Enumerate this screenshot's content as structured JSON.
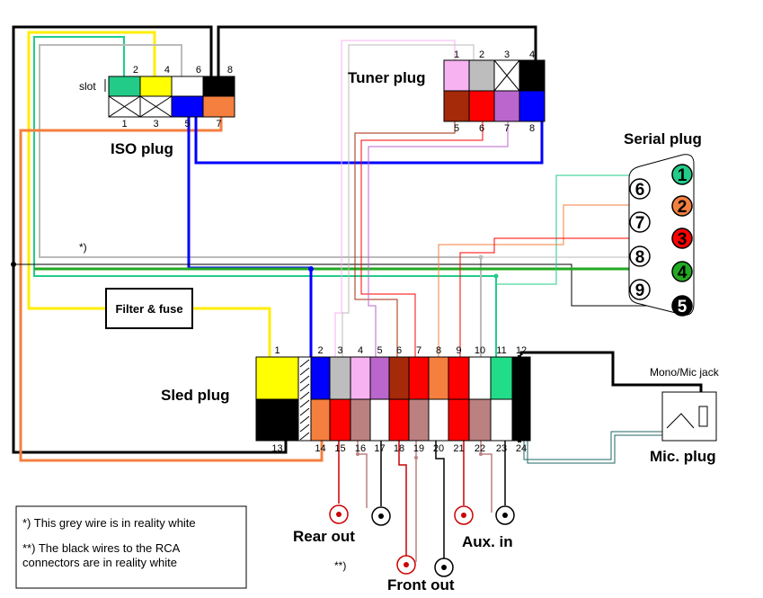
{
  "diagram": {
    "iso_plug": {
      "label": "ISO plug",
      "slot_label": "slot",
      "top_pins": [
        {
          "num": "2",
          "color": "#22cc88"
        },
        {
          "num": "4",
          "color": "#ffff00"
        },
        {
          "num": "6",
          "color": "#ffffff"
        },
        {
          "num": "8",
          "color": "#000000"
        }
      ],
      "bottom_pins": [
        {
          "num": "1",
          "color": "none"
        },
        {
          "num": "3",
          "color": "none"
        },
        {
          "num": "5",
          "color": "#0000ff"
        },
        {
          "num": "7",
          "color": "#f47f3f"
        }
      ]
    },
    "tuner_plug": {
      "label": "Tuner plug",
      "top_pins": [
        {
          "num": "1",
          "color": "#f7b2f2"
        },
        {
          "num": "2",
          "color": "#bdbdbd"
        },
        {
          "num": "3",
          "color": "none"
        },
        {
          "num": "4",
          "color": "#000000"
        }
      ],
      "bottom_pins": [
        {
          "num": "5",
          "color": "#a52a0a"
        },
        {
          "num": "6",
          "color": "#ff0000"
        },
        {
          "num": "7",
          "color": "#bb66cc"
        },
        {
          "num": "8",
          "color": "#0000ff"
        }
      ]
    },
    "serial_plug": {
      "label": "Serial plug",
      "left_pins": [
        "6",
        "7",
        "8",
        "9"
      ],
      "right_pins": [
        {
          "num": "1",
          "color": "#22cc88"
        },
        {
          "num": "2",
          "color": "#f47f3f"
        },
        {
          "num": "3",
          "color": "#ff0000"
        },
        {
          "num": "4",
          "color": "#22aa22"
        },
        {
          "num": "5",
          "color": "#000000"
        }
      ]
    },
    "sled_plug": {
      "label": "Sled plug",
      "top_pins": [
        {
          "num": "1",
          "color": "#ffff00"
        },
        {
          "num": "2",
          "color": "#0000ff"
        },
        {
          "num": "3",
          "color": "#bdbdbd"
        },
        {
          "num": "4",
          "color": "#f7b2f2"
        },
        {
          "num": "5",
          "color": "#bb66cc"
        },
        {
          "num": "6",
          "color": "#a52a0a"
        },
        {
          "num": "7",
          "color": "#ff0000"
        },
        {
          "num": "8",
          "color": "#f47f3f"
        },
        {
          "num": "9",
          "color": "#ff0000"
        },
        {
          "num": "10",
          "color": "#ffffff"
        },
        {
          "num": "11",
          "color": "#22dd88"
        },
        {
          "num": "12",
          "color": "#000000"
        }
      ],
      "bottom_pins": [
        {
          "num": "13",
          "color": "#000000"
        },
        {
          "num": "14",
          "color": "#f47f3f"
        },
        {
          "num": "15",
          "color": "#ff0000"
        },
        {
          "num": "16",
          "color": "#bb8080"
        },
        {
          "num": "17",
          "color": "#ffffff"
        },
        {
          "num": "18",
          "color": "#ff0000"
        },
        {
          "num": "19",
          "color": "#bb8080"
        },
        {
          "num": "20",
          "color": "#ffffff"
        },
        {
          "num": "21",
          "color": "#ff0000"
        },
        {
          "num": "22",
          "color": "#bb8080"
        },
        {
          "num": "23",
          "color": "#ffffff"
        },
        {
          "num": "24",
          "color": "#000000"
        }
      ]
    },
    "filter_fuse": "Filter & fuse",
    "mono_mic_jack": "Mono/Mic jack",
    "mic_plug": "Mic. plug",
    "rear_out": "Rear out",
    "front_out": "Front out",
    "aux_in": "Aux. in",
    "grey_wire_marker": "*)",
    "black_wire_marker": "**)",
    "notes": [
      "*) This grey wire is in reality white",
      "**) The black wires to the RCA",
      "connectors are in reality white"
    ]
  }
}
